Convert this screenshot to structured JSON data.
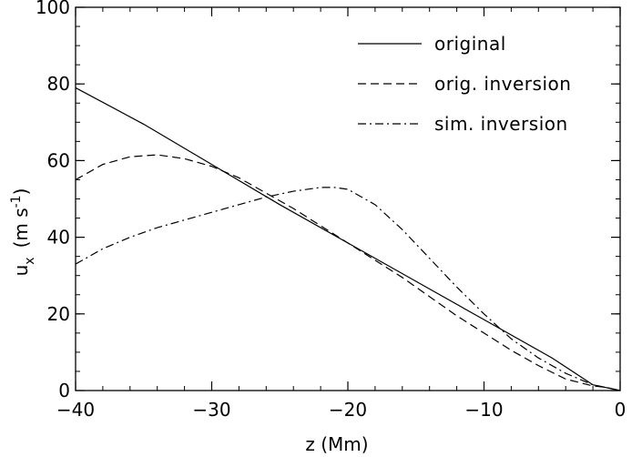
{
  "chart_data": {
    "type": "line",
    "xlabel": "z (Mm)",
    "ylabel": {
      "base": "u",
      "sub": "x",
      "units_pre": "(m s",
      "units_sup": "-1",
      "units_post": ")"
    },
    "xlim": [
      -40,
      0
    ],
    "ylim": [
      0,
      100
    ],
    "x_ticks": [
      -40,
      -30,
      -20,
      -10,
      0
    ],
    "y_ticks": [
      0,
      20,
      40,
      60,
      80,
      100
    ],
    "x_minor_step": 2,
    "y_minor_step": 5,
    "grid": false,
    "legend_position": "top-right",
    "series": [
      {
        "name": "original",
        "style": "solid",
        "x": [
          -40,
          -35,
          -30,
          -25,
          -20,
          -15,
          -10,
          -5,
          -2,
          0
        ],
        "y": [
          79,
          69.5,
          59,
          48.5,
          38.5,
          28.5,
          18.5,
          8.5,
          1.5,
          0
        ]
      },
      {
        "name": "orig. inversion",
        "style": "dashed",
        "x": [
          -40,
          -38,
          -36,
          -34,
          -32,
          -30,
          -28,
          -26,
          -24,
          -22,
          -20,
          -18,
          -16,
          -14,
          -12,
          -10,
          -8,
          -6,
          -4,
          -2,
          -1,
          0
        ],
        "y": [
          55,
          59,
          61,
          61.5,
          60.5,
          58.5,
          55.5,
          51.5,
          47.5,
          43,
          38.5,
          34,
          29.5,
          24.5,
          19.5,
          15,
          10.5,
          6.5,
          3,
          1.2,
          0.8,
          0
        ]
      },
      {
        "name": "sim. inversion",
        "style": "dashdot",
        "x": [
          -40,
          -38,
          -36,
          -34,
          -32,
          -30,
          -28,
          -26,
          -24,
          -22,
          -21,
          -20,
          -18,
          -16,
          -14,
          -12,
          -10,
          -8,
          -6,
          -4,
          -2,
          -1,
          0
        ],
        "y": [
          33,
          37,
          40,
          42.5,
          44.5,
          46.5,
          48.5,
          50.5,
          52,
          53,
          53,
          52.5,
          48.5,
          42,
          34.5,
          27,
          20,
          13.5,
          8.5,
          4.5,
          1.5,
          0.8,
          0
        ]
      }
    ]
  }
}
